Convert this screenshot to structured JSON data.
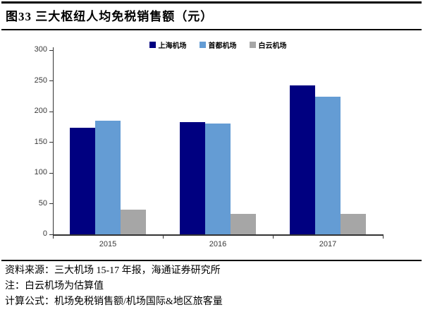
{
  "header": {
    "title": "图33 三大枢纽人均免税销售额（元）"
  },
  "chart_data": {
    "type": "bar",
    "title": "三大枢纽人均免税销售额（元）",
    "categories": [
      "2015",
      "2016",
      "2017"
    ],
    "series": [
      {
        "name": "上海机场",
        "color": "#000080",
        "values": [
          173,
          183,
          242
        ]
      },
      {
        "name": "首都机场",
        "color": "#649CD4",
        "values": [
          185,
          181,
          224
        ]
      },
      {
        "name": "白云机场",
        "color": "#A6A6A6",
        "values": [
          40,
          33,
          33
        ]
      }
    ],
    "xlabel": "",
    "ylabel": "",
    "ylim": [
      0,
      300
    ],
    "ytick_step": 50,
    "yticks": [
      "0",
      "50",
      "100",
      "150",
      "200",
      "250",
      "300"
    ],
    "legend_position": "top-center",
    "grid": false,
    "axis_color": "#333333"
  },
  "footer": {
    "source": "资料来源：三大机场 15-17 年报，海通证券研究所",
    "note": "注：白云机场为估算值",
    "formula": "计算公式：机场免税销售额/机场国际&地区旅客量"
  }
}
